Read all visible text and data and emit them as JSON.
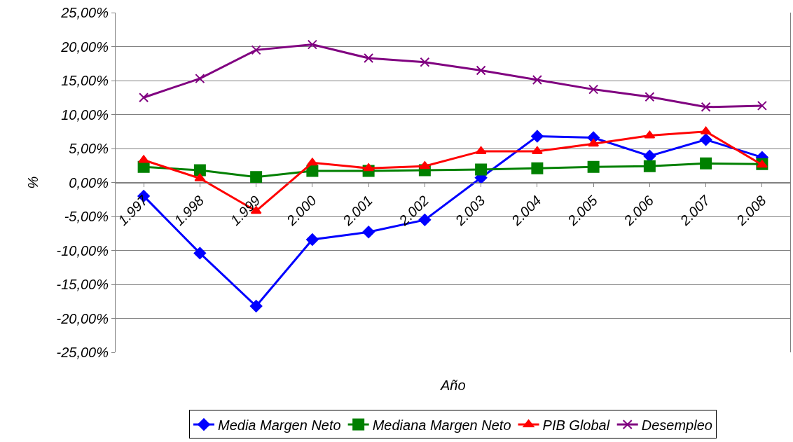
{
  "chart_data": {
    "type": "line",
    "xlabel": "Año",
    "ylabel": "%",
    "categories": [
      "1.997",
      "1.998",
      "1.999",
      "2.000",
      "2.001",
      "2.002",
      "2.003",
      "2.004",
      "2.005",
      "2.006",
      "2.007",
      "2.008"
    ],
    "series": [
      {
        "name": "Media Margen Neto",
        "color": "#0000ff",
        "marker": "diamond",
        "values": [
          -2.0,
          -10.4,
          -18.2,
          -8.4,
          -7.3,
          -5.5,
          0.7,
          6.8,
          6.6,
          3.9,
          6.3,
          3.7
        ]
      },
      {
        "name": "Mediana Margen Neto",
        "color": "#008000",
        "marker": "square",
        "values": [
          2.3,
          1.8,
          0.8,
          1.7,
          1.7,
          1.8,
          1.9,
          2.1,
          2.3,
          2.4,
          2.8,
          2.7
        ]
      },
      {
        "name": "PIB Global",
        "color": "#ff0000",
        "marker": "triangle",
        "values": [
          3.3,
          0.6,
          -4.2,
          2.9,
          2.1,
          2.4,
          4.6,
          4.6,
          5.7,
          6.9,
          7.5,
          2.6
        ]
      },
      {
        "name": "Desempleo",
        "color": "#800080",
        "marker": "cross",
        "values": [
          12.5,
          15.3,
          19.5,
          20.3,
          18.3,
          17.7,
          16.5,
          15.1,
          13.7,
          12.6,
          11.1,
          11.3
        ]
      }
    ],
    "ylim": [
      -25,
      25
    ],
    "yticks": [
      {
        "value": -25,
        "label": "-25,00%"
      },
      {
        "value": -20,
        "label": "-20,00%"
      },
      {
        "value": -15,
        "label": "-15,00%"
      },
      {
        "value": -10,
        "label": "-10,00%"
      },
      {
        "value": -5,
        "label": "-5,00%"
      },
      {
        "value": 0,
        "label": "0,00%"
      },
      {
        "value": 5,
        "label": "5,00%"
      },
      {
        "value": 10,
        "label": "10,00%"
      },
      {
        "value": 15,
        "label": "15,00%"
      },
      {
        "value": 20,
        "label": "20,00%"
      },
      {
        "value": 25,
        "label": "25,00%"
      }
    ],
    "grid": "y",
    "legend": "bottom",
    "line_style": "solid"
  }
}
